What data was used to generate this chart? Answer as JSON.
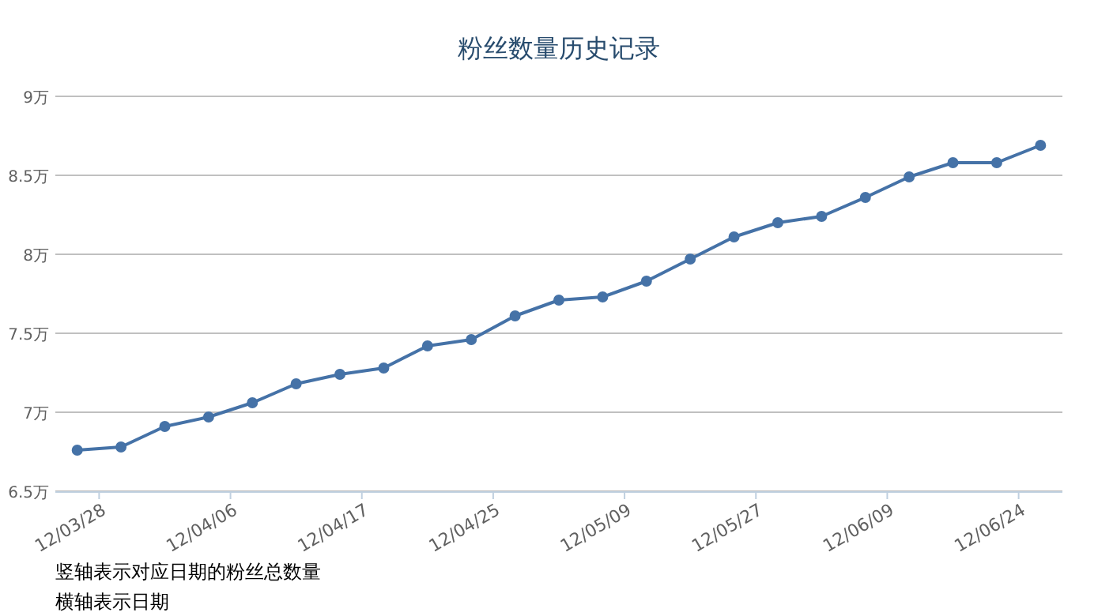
{
  "chart_data": {
    "type": "line",
    "title": "粉丝数量历史记录",
    "categories": [
      "12/03/28",
      null,
      null,
      "12/04/06",
      null,
      null,
      "12/04/17",
      null,
      null,
      "12/04/25",
      null,
      null,
      "12/05/09",
      null,
      null,
      "12/05/27",
      null,
      null,
      "12/06/09",
      null,
      null,
      "12/06/24",
      null
    ],
    "series": [
      {
        "color": "#4572a7",
        "values": [
          6.76,
          6.78,
          6.91,
          6.97,
          7.06,
          7.18,
          7.24,
          7.28,
          7.42,
          7.46,
          7.61,
          7.71,
          7.73,
          7.83,
          7.97,
          8.11,
          8.2,
          8.24,
          8.36,
          8.49,
          8.58,
          8.58,
          8.69
        ]
      }
    ],
    "ylim": [
      6.5,
      9
    ],
    "yticks": [
      {
        "value": 6.5,
        "label": "6.5万"
      },
      {
        "value": 7,
        "label": "7万"
      },
      {
        "value": 7.5,
        "label": "7.5万"
      },
      {
        "value": 8,
        "label": "8万"
      },
      {
        "value": 8.5,
        "label": "8.5万"
      },
      {
        "value": 9,
        "label": "9万"
      }
    ],
    "grid": "y",
    "marker": "circle",
    "line_style": "solid",
    "annotations": [
      "竖轴表示对应日期的粉丝总数量",
      "横轴表示日期"
    ]
  }
}
